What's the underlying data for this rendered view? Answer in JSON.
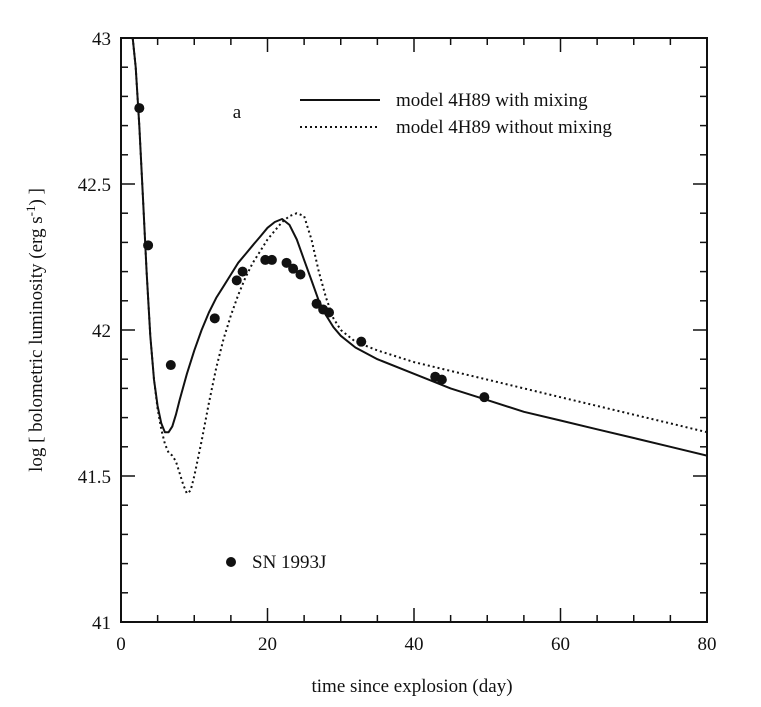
{
  "chart_data": {
    "type": "line",
    "panel_label": "a",
    "xlabel": "time since explosion (day)",
    "ylabel": "log [ bolometric luminosity (erg s",
    "ylabel_sup": "-1",
    "ylabel_end": ") ]",
    "xlim": [
      0,
      80
    ],
    "ylim": [
      41,
      43
    ],
    "x_ticks": [
      0,
      20,
      40,
      60,
      80
    ],
    "x_tick_labels": [
      "0",
      "20",
      "40",
      "60",
      "80"
    ],
    "y_ticks": [
      41,
      41.5,
      42,
      42.5,
      43
    ],
    "y_tick_labels": [
      "41",
      "41.5",
      "42",
      "42.5",
      "43"
    ],
    "legend": [
      {
        "label": "model 4H89 with mixing",
        "style": "solid"
      },
      {
        "label": "model 4H89 without mixing",
        "style": "dotted"
      },
      {
        "label": "SN 1993J",
        "style": "marker"
      }
    ],
    "series": [
      {
        "name": "model 4H89 with mixing",
        "style": "solid",
        "x": [
          1.6,
          2.0,
          2.5,
          3.0,
          3.5,
          4.0,
          4.5,
          5.0,
          5.5,
          6.0,
          6.5,
          7.0,
          7.5,
          8.0,
          9.0,
          10.0,
          11.0,
          12.0,
          13.0,
          14.0,
          15.0,
          16.0,
          17.0,
          18.0,
          19.0,
          20.0,
          21.0,
          22.0,
          23.0,
          24.0,
          25.0,
          26.0,
          27.0,
          28.0,
          29.0,
          30.0,
          32.0,
          35.0,
          40.0,
          45.0,
          50.0,
          55.0,
          60.0,
          65.0,
          70.0,
          75.0,
          80.0
        ],
        "y": [
          43.0,
          42.9,
          42.7,
          42.45,
          42.2,
          41.98,
          41.83,
          41.74,
          41.68,
          41.65,
          41.65,
          41.67,
          41.71,
          41.76,
          41.85,
          41.93,
          42.0,
          42.06,
          42.11,
          42.15,
          42.19,
          42.23,
          42.26,
          42.29,
          42.32,
          42.35,
          42.37,
          42.38,
          42.36,
          42.31,
          42.24,
          42.17,
          42.1,
          42.05,
          42.01,
          41.98,
          41.94,
          41.9,
          41.85,
          41.8,
          41.76,
          41.72,
          41.69,
          41.66,
          41.63,
          41.6,
          41.57
        ]
      },
      {
        "name": "model 4H89 without mixing",
        "style": "dotted",
        "x": [
          1.6,
          2.0,
          2.5,
          3.0,
          3.5,
          4.0,
          4.5,
          5.0,
          5.5,
          6.0,
          6.5,
          7.0,
          7.5,
          8.0,
          8.5,
          9.0,
          9.5,
          10.0,
          11.0,
          12.0,
          13.0,
          14.0,
          15.0,
          16.0,
          17.0,
          18.0,
          19.0,
          20.0,
          21.0,
          22.0,
          23.0,
          24.0,
          25.0,
          26.0,
          27.0,
          28.0,
          29.0,
          30.0,
          32.0,
          35.0,
          40.0,
          45.0,
          50.0,
          55.0,
          60.0,
          65.0,
          70.0,
          75.0,
          80.0
        ],
        "y": [
          43.0,
          42.9,
          42.7,
          42.45,
          42.2,
          41.98,
          41.83,
          41.73,
          41.66,
          41.61,
          41.58,
          41.57,
          41.55,
          41.51,
          41.47,
          41.44,
          41.45,
          41.5,
          41.62,
          41.75,
          41.87,
          41.97,
          42.05,
          42.12,
          42.18,
          42.23,
          42.27,
          42.31,
          42.34,
          42.37,
          42.39,
          42.4,
          42.39,
          42.31,
          42.2,
          42.11,
          42.04,
          42.0,
          41.96,
          41.93,
          41.89,
          41.86,
          41.83,
          41.8,
          41.77,
          41.74,
          41.71,
          41.68,
          41.65
        ]
      },
      {
        "name": "SN 1993J",
        "style": "marker",
        "x": [
          2.5,
          3.7,
          6.8,
          12.8,
          15.8,
          16.6,
          19.7,
          20.6,
          22.6,
          23.5,
          24.5,
          26.7,
          27.6,
          28.4,
          32.8,
          42.9,
          43.8,
          49.6
        ],
        "y": [
          42.76,
          42.29,
          41.88,
          42.04,
          42.17,
          42.2,
          42.24,
          42.24,
          42.23,
          42.21,
          42.19,
          42.09,
          42.07,
          42.06,
          41.96,
          41.84,
          41.83,
          41.77
        ]
      }
    ]
  }
}
